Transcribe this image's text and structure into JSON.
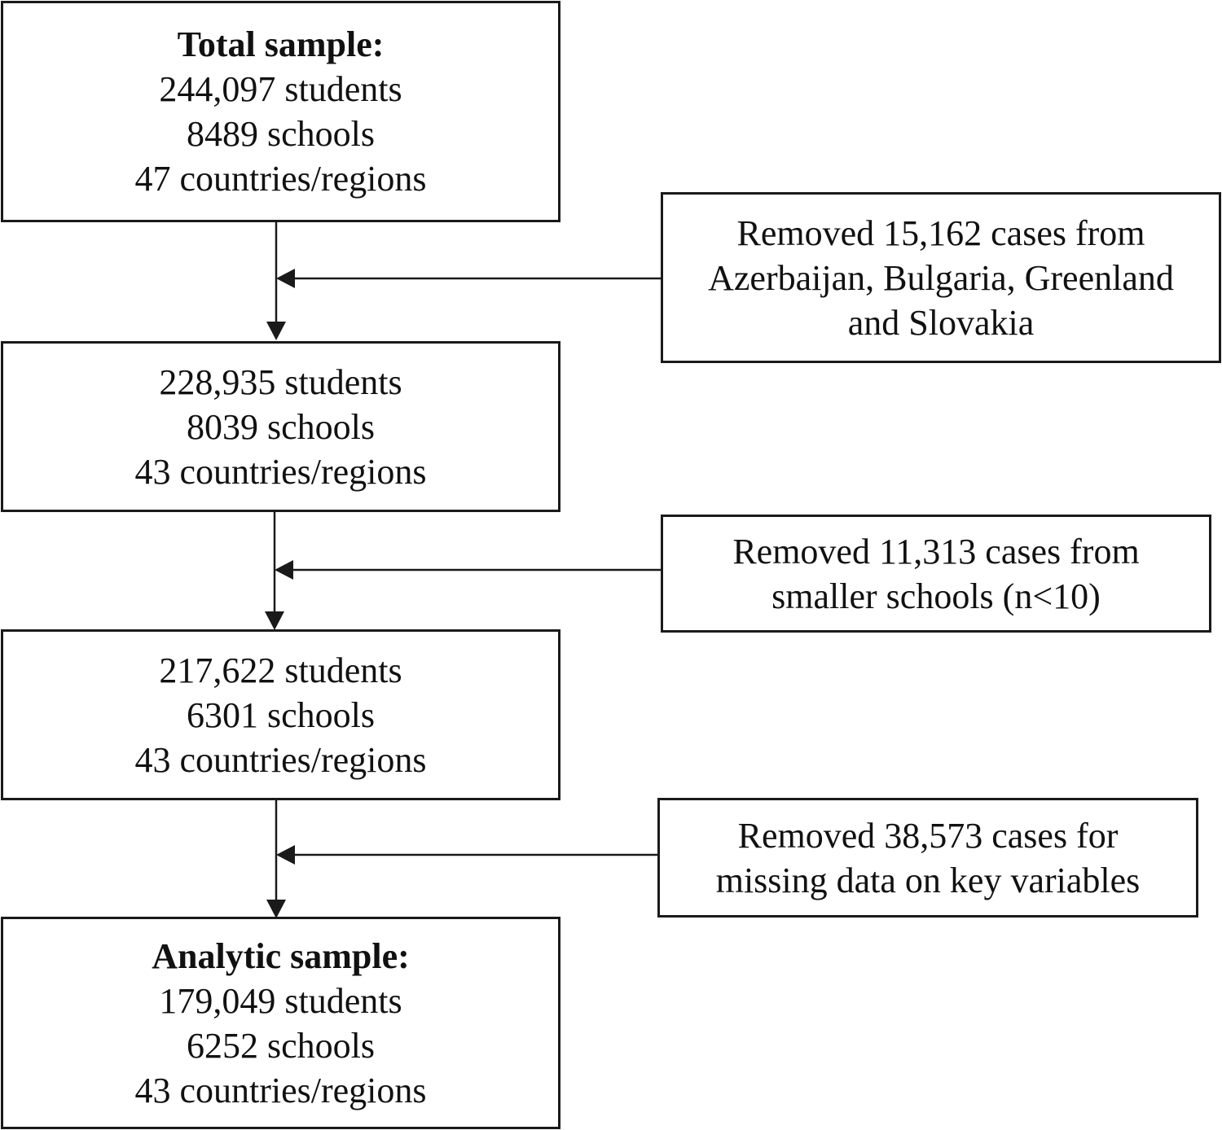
{
  "total_sample": {
    "heading": "Total sample:",
    "students": "244,097 students",
    "schools": "8489 schools",
    "countries": "47 countries/regions"
  },
  "removal_1": {
    "lines": [
      "Removed 15,162 cases from",
      "Azerbaijan, Bulgaria, Greenland",
      "and Slovakia"
    ]
  },
  "stage_2": {
    "students": "228,935 students",
    "schools": "8039 schools",
    "countries": "43 countries/regions"
  },
  "removal_2": {
    "lines": [
      "Removed 11,313 cases from",
      "smaller schools (n<10)"
    ]
  },
  "stage_3": {
    "students": "217,622 students",
    "schools": "6301 schools",
    "countries": "43 countries/regions"
  },
  "removal_3": {
    "lines": [
      "Removed 38,573 cases for",
      "missing data on key variables"
    ]
  },
  "analytic_sample": {
    "heading": "Analytic sample:",
    "students": "179,049 students",
    "schools": "6252 schools",
    "countries": "43 countries/regions"
  }
}
